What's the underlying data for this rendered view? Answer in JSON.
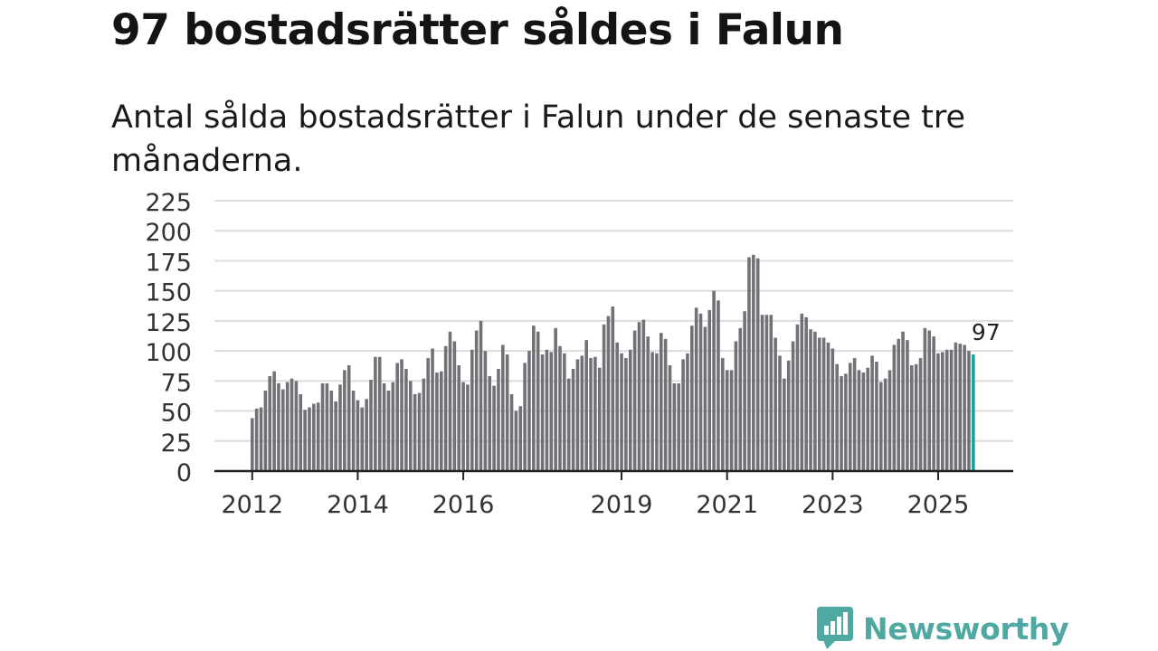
{
  "header": {
    "title": "97 bostadsrätter såldes i Falun",
    "subtitle": "Antal sålda bostadsrätter i Falun under de senaste tre månaderna."
  },
  "brand": {
    "name": "Newsworthy",
    "color": "#4fa8a1"
  },
  "colors": {
    "bar": "#727178",
    "highlight": "#17a39b",
    "grid": "#dcdcdc",
    "axis": "#222222"
  },
  "chart_data": {
    "type": "bar",
    "title": "97 bostadsrätter såldes i Falun",
    "subtitle": "Antal sålda bostadsrätter i Falun under de senaste tre månaderna.",
    "xlabel": "",
    "ylabel": "",
    "ylim": [
      0,
      225
    ],
    "yticks": [
      0,
      25,
      50,
      75,
      100,
      125,
      150,
      175,
      200,
      225
    ],
    "grid": true,
    "xticks": [
      {
        "label": "2012",
        "index": 0
      },
      {
        "label": "2014",
        "index": 24
      },
      {
        "label": "2016",
        "index": 48
      },
      {
        "label": "2019",
        "index": 84
      },
      {
        "label": "2021",
        "index": 108
      },
      {
        "label": "2023",
        "index": 132
      },
      {
        "label": "2025",
        "index": 156
      }
    ],
    "highlight": {
      "index": 164,
      "label": "97"
    },
    "values": [
      44,
      52,
      53,
      67,
      79,
      83,
      73,
      68,
      74,
      77,
      75,
      64,
      51,
      53,
      56,
      57,
      73,
      73,
      67,
      58,
      72,
      84,
      88,
      67,
      59,
      53,
      60,
      76,
      95,
      95,
      73,
      67,
      74,
      90,
      93,
      85,
      75,
      64,
      65,
      77,
      94,
      102,
      82,
      83,
      104,
      116,
      108,
      88,
      74,
      72,
      101,
      117,
      125,
      100,
      79,
      71,
      85,
      105,
      97,
      64,
      50,
      54,
      90,
      100,
      121,
      116,
      97,
      101,
      99,
      119,
      104,
      98,
      77,
      85,
      93,
      96,
      109,
      94,
      95,
      86,
      122,
      129,
      137,
      107,
      98,
      94,
      101,
      117,
      124,
      126,
      112,
      99,
      98,
      115,
      110,
      88,
      73,
      73,
      93,
      98,
      121,
      136,
      131,
      120,
      134,
      150,
      142,
      94,
      84,
      84,
      108,
      119,
      133,
      178,
      180,
      177,
      130,
      130,
      130,
      111,
      96,
      77,
      92,
      108,
      122,
      131,
      128,
      118,
      116,
      111,
      111,
      107,
      102,
      89,
      79,
      81,
      90,
      94,
      84,
      82,
      86,
      96,
      91,
      74,
      77,
      84,
      105,
      110,
      116,
      109,
      88,
      89,
      94,
      119,
      117,
      112,
      98,
      99,
      101,
      101,
      107,
      106,
      105,
      100,
      97
    ]
  }
}
